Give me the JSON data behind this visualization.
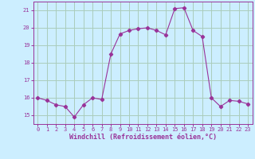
{
  "x": [
    0,
    1,
    2,
    3,
    4,
    5,
    6,
    7,
    8,
    9,
    10,
    11,
    12,
    13,
    14,
    15,
    16,
    17,
    18,
    19,
    20,
    21,
    22,
    23
  ],
  "y": [
    16.0,
    15.85,
    15.6,
    15.5,
    14.9,
    15.6,
    16.0,
    15.9,
    18.5,
    19.65,
    19.85,
    19.95,
    20.0,
    19.85,
    19.6,
    21.1,
    21.15,
    19.85,
    19.5,
    16.0,
    15.5,
    15.85,
    15.8,
    15.65
  ],
  "line_color": "#993399",
  "marker": "D",
  "marker_size": 2.2,
  "bg_color": "#cceeff",
  "grid_color": "#aaccbb",
  "xlabel": "Windchill (Refroidissement éolien,°C)",
  "xlabel_color": "#993399",
  "tick_color": "#993399",
  "ylim": [
    14.5,
    21.5
  ],
  "xlim": [
    -0.5,
    23.5
  ],
  "yticks": [
    15,
    16,
    17,
    18,
    19,
    20,
    21
  ],
  "xticks": [
    0,
    1,
    2,
    3,
    4,
    5,
    6,
    7,
    8,
    9,
    10,
    11,
    12,
    13,
    14,
    15,
    16,
    17,
    18,
    19,
    20,
    21,
    22,
    23
  ]
}
